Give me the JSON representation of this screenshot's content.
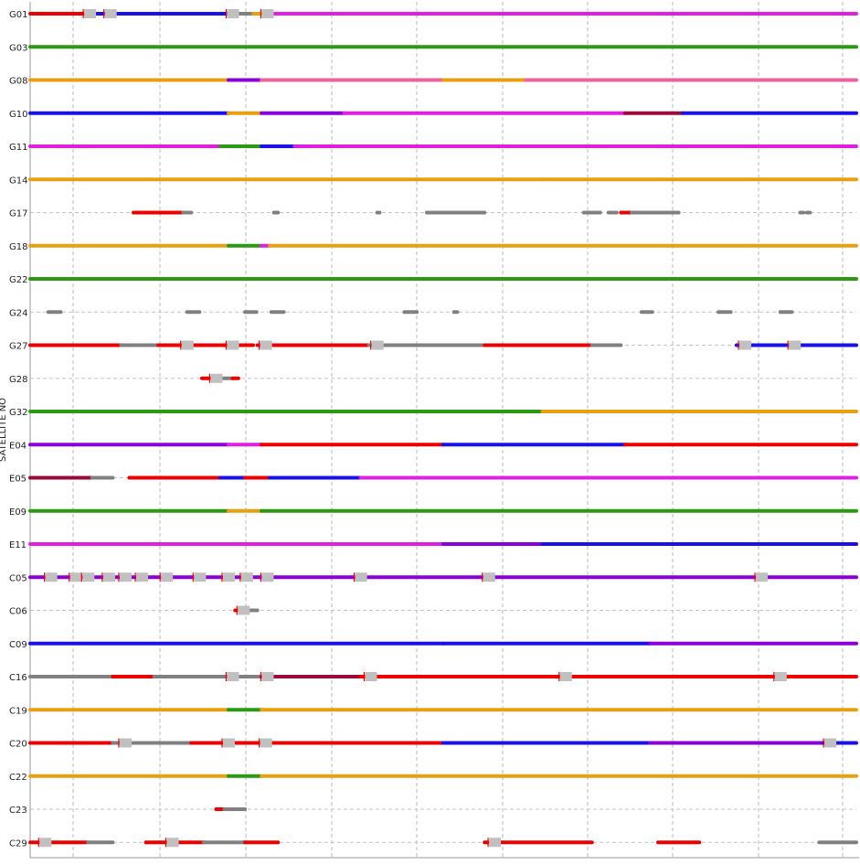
{
  "chart_data": {
    "type": "timeline",
    "title": "",
    "ylabel": "SATELLITE NO",
    "xlabel": "",
    "x_range": [
      0,
      1
    ],
    "grid": true,
    "segment_colors": {
      "gray": "#808080",
      "red": "#ee0000",
      "green": "#2a9a12",
      "orange": "#e8a010",
      "pink": "#f060a0",
      "magenta": "#e020e0",
      "purple": "#8a00d8",
      "blue": "#1a10e8",
      "darkred": "#9a0a3a",
      "gap_box": "#c0c0c0"
    },
    "satellites": [
      {
        "id": "G01",
        "segments": [
          [
            0.0,
            0.07,
            "red"
          ],
          [
            0.07,
            0.24,
            "blue"
          ],
          [
            0.24,
            0.27,
            "gray"
          ],
          [
            0.27,
            0.29,
            "orange"
          ],
          [
            0.29,
            1.0,
            "magenta"
          ]
        ],
        "gaps": [
          0.072,
          0.097,
          0.245,
          0.287
        ]
      },
      {
        "id": "G03",
        "segments": [
          [
            0.0,
            1.0,
            "green"
          ]
        ],
        "gaps": []
      },
      {
        "id": "G08",
        "segments": [
          [
            0.0,
            0.24,
            "orange"
          ],
          [
            0.24,
            0.28,
            "purple"
          ],
          [
            0.28,
            0.5,
            "pink"
          ],
          [
            0.5,
            0.6,
            "orange"
          ],
          [
            0.6,
            1.0,
            "pink"
          ]
        ],
        "gaps": []
      },
      {
        "id": "G10",
        "segments": [
          [
            0.0,
            0.24,
            "blue"
          ],
          [
            0.24,
            0.28,
            "orange"
          ],
          [
            0.28,
            0.38,
            "purple"
          ],
          [
            0.38,
            0.72,
            "magenta"
          ],
          [
            0.72,
            0.79,
            "darkred"
          ],
          [
            0.79,
            1.0,
            "blue"
          ]
        ],
        "gaps": []
      },
      {
        "id": "G11",
        "segments": [
          [
            0.0,
            0.23,
            "magenta"
          ],
          [
            0.23,
            0.28,
            "green"
          ],
          [
            0.28,
            0.32,
            "blue"
          ],
          [
            0.32,
            1.0,
            "magenta"
          ]
        ],
        "gaps": []
      },
      {
        "id": "G14",
        "segments": [
          [
            0.0,
            0.62,
            "orange"
          ],
          [
            0.62,
            1.0,
            "orange"
          ]
        ],
        "gaps": []
      },
      {
        "id": "G17",
        "segments": [
          [
            0.125,
            0.185,
            "red"
          ],
          [
            0.185,
            0.195,
            "gray"
          ],
          [
            0.295,
            0.3,
            "gray"
          ],
          [
            0.42,
            0.423,
            "gray"
          ],
          [
            0.48,
            0.49,
            "gray"
          ],
          [
            0.49,
            0.55,
            "gray"
          ],
          [
            0.67,
            0.69,
            "gray"
          ],
          [
            0.7,
            0.71,
            "gray"
          ],
          [
            0.715,
            0.728,
            "red"
          ],
          [
            0.728,
            0.785,
            "gray"
          ],
          [
            0.932,
            0.936,
            "gray"
          ],
          [
            0.94,
            0.944,
            "gray"
          ]
        ],
        "gaps": []
      },
      {
        "id": "G18",
        "segments": [
          [
            0.0,
            0.24,
            "orange"
          ],
          [
            0.24,
            0.28,
            "green"
          ],
          [
            0.28,
            0.29,
            "magenta"
          ],
          [
            0.29,
            1.0,
            "orange"
          ]
        ],
        "gaps": []
      },
      {
        "id": "G22",
        "segments": [
          [
            0.0,
            1.0,
            "green"
          ]
        ],
        "gaps": []
      },
      {
        "id": "G24",
        "segments": [
          [
            0.022,
            0.037,
            "gray"
          ],
          [
            0.19,
            0.205,
            "gray"
          ],
          [
            0.26,
            0.274,
            "gray"
          ],
          [
            0.292,
            0.307,
            "gray"
          ],
          [
            0.453,
            0.468,
            "gray"
          ],
          [
            0.513,
            0.517,
            "gray"
          ],
          [
            0.74,
            0.753,
            "gray"
          ],
          [
            0.833,
            0.848,
            "gray"
          ],
          [
            0.908,
            0.922,
            "gray"
          ]
        ],
        "gaps": []
      },
      {
        "id": "G27",
        "segments": [
          [
            0.0,
            0.11,
            "red"
          ],
          [
            0.11,
            0.155,
            "gray"
          ],
          [
            0.155,
            0.24,
            "red"
          ],
          [
            0.24,
            0.27,
            "red"
          ],
          [
            0.275,
            0.41,
            "red"
          ],
          [
            0.41,
            0.55,
            "gray"
          ],
          [
            0.55,
            0.68,
            "red"
          ],
          [
            0.68,
            0.715,
            "gray"
          ],
          [
            0.855,
            0.96,
            "blue"
          ],
          [
            0.96,
            1.0,
            "blue"
          ]
        ],
        "gaps": [
          0.19,
          0.245,
          0.285,
          0.42,
          0.865,
          0.925
        ]
      },
      {
        "id": "G28",
        "segments": [
          [
            0.208,
            0.222,
            "red"
          ],
          [
            0.222,
            0.245,
            "gray"
          ],
          [
            0.245,
            0.252,
            "red"
          ]
        ],
        "gaps": [
          0.225
        ]
      },
      {
        "id": "G32",
        "segments": [
          [
            0.0,
            0.62,
            "green"
          ],
          [
            0.62,
            1.0,
            "orange"
          ]
        ],
        "gaps": []
      },
      {
        "id": "E04",
        "segments": [
          [
            0.0,
            0.24,
            "purple"
          ],
          [
            0.24,
            0.28,
            "magenta"
          ],
          [
            0.28,
            0.5,
            "red"
          ],
          [
            0.5,
            0.72,
            "blue"
          ],
          [
            0.72,
            1.0,
            "red"
          ]
        ],
        "gaps": []
      },
      {
        "id": "E05",
        "segments": [
          [
            0.0,
            0.075,
            "darkred"
          ],
          [
            0.075,
            0.1,
            "gray"
          ],
          [
            0.12,
            0.23,
            "red"
          ],
          [
            0.23,
            0.26,
            "blue"
          ],
          [
            0.26,
            0.29,
            "red"
          ],
          [
            0.29,
            0.4,
            "blue"
          ],
          [
            0.4,
            1.0,
            "magenta"
          ]
        ],
        "gaps": []
      },
      {
        "id": "E09",
        "segments": [
          [
            0.0,
            0.24,
            "green"
          ],
          [
            0.24,
            0.28,
            "orange"
          ],
          [
            0.28,
            1.0,
            "green"
          ]
        ],
        "gaps": []
      },
      {
        "id": "E11",
        "segments": [
          [
            0.0,
            0.5,
            "magenta"
          ],
          [
            0.5,
            0.62,
            "purple"
          ],
          [
            0.62,
            1.0,
            "blue"
          ]
        ],
        "gaps": []
      },
      {
        "id": "C05",
        "segments": [
          [
            0.0,
            0.28,
            "purple"
          ],
          [
            0.28,
            1.0,
            "purple"
          ]
        ],
        "gaps": [
          0.025,
          0.055,
          0.07,
          0.095,
          0.115,
          0.135,
          0.165,
          0.205,
          0.24,
          0.262,
          0.287,
          0.4,
          0.555,
          0.885
        ]
      },
      {
        "id": "C06",
        "segments": [
          [
            0.248,
            0.262,
            "red"
          ],
          [
            0.262,
            0.275,
            "gray"
          ]
        ],
        "gaps": [
          0.258
        ]
      },
      {
        "id": "C09",
        "segments": [
          [
            0.0,
            0.5,
            "blue"
          ],
          [
            0.5,
            0.75,
            "blue"
          ],
          [
            0.75,
            1.0,
            "purple"
          ]
        ],
        "gaps": []
      },
      {
        "id": "C16",
        "segments": [
          [
            0.0,
            0.1,
            "gray"
          ],
          [
            0.1,
            0.15,
            "red"
          ],
          [
            0.15,
            0.24,
            "gray"
          ],
          [
            0.24,
            0.28,
            "gray"
          ],
          [
            0.28,
            0.4,
            "darkred"
          ],
          [
            0.4,
            0.55,
            "red"
          ],
          [
            0.55,
            1.0,
            "red"
          ]
        ],
        "gaps": [
          0.245,
          0.287,
          0.412,
          0.648,
          0.908
        ]
      },
      {
        "id": "C19",
        "segments": [
          [
            0.0,
            0.24,
            "orange"
          ],
          [
            0.24,
            0.28,
            "green"
          ],
          [
            0.28,
            1.0,
            "orange"
          ]
        ],
        "gaps": []
      },
      {
        "id": "C20",
        "segments": [
          [
            0.0,
            0.1,
            "red"
          ],
          [
            0.1,
            0.195,
            "gray"
          ],
          [
            0.195,
            0.24,
            "red"
          ],
          [
            0.24,
            0.28,
            "red"
          ],
          [
            0.28,
            0.5,
            "red"
          ],
          [
            0.5,
            0.75,
            "blue"
          ],
          [
            0.75,
            0.96,
            "purple"
          ],
          [
            0.96,
            1.0,
            "blue"
          ]
        ],
        "gaps": [
          0.115,
          0.24,
          0.285,
          0.968
        ]
      },
      {
        "id": "C22",
        "segments": [
          [
            0.0,
            0.24,
            "orange"
          ],
          [
            0.24,
            0.28,
            "green"
          ],
          [
            0.28,
            1.0,
            "orange"
          ]
        ],
        "gaps": []
      },
      {
        "id": "C23",
        "segments": [
          [
            0.225,
            0.235,
            "red"
          ],
          [
            0.235,
            0.26,
            "gray"
          ]
        ],
        "gaps": []
      },
      {
        "id": "C29",
        "segments": [
          [
            0.0,
            0.07,
            "red"
          ],
          [
            0.07,
            0.1,
            "gray"
          ],
          [
            0.14,
            0.21,
            "red"
          ],
          [
            0.21,
            0.26,
            "gray"
          ],
          [
            0.26,
            0.3,
            "red"
          ],
          [
            0.55,
            0.68,
            "red"
          ],
          [
            0.76,
            0.81,
            "red"
          ],
          [
            0.955,
            1.0,
            "gray"
          ]
        ],
        "gaps": [
          0.018,
          0.172,
          0.562
        ]
      }
    ]
  }
}
